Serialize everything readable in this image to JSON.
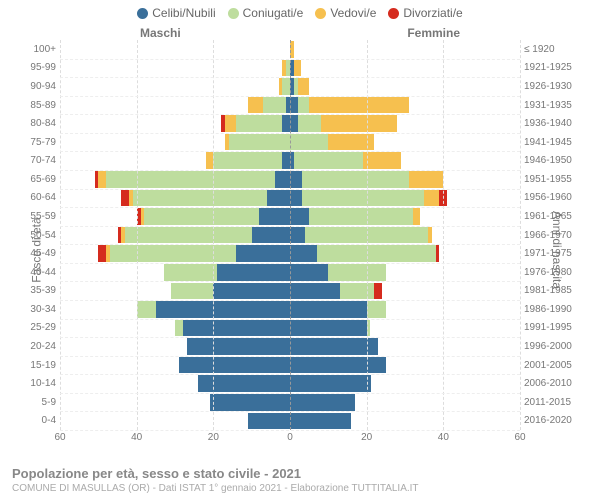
{
  "type": "population-pyramid",
  "legend": [
    {
      "label": "Celibi/Nubili",
      "color": "#3a6f9a"
    },
    {
      "label": "Coniugati/e",
      "color": "#bedd9e"
    },
    {
      "label": "Vedovi/e",
      "color": "#f6c04f"
    },
    {
      "label": "Divorziati/e",
      "color": "#d52b1e"
    }
  ],
  "side_titles": {
    "male": "Maschi",
    "female": "Femmine"
  },
  "y_axis_left_title": "Fasce di età",
  "y_axis_right_title": "Anni di nascita",
  "x_axis": {
    "min": 0,
    "max": 60,
    "ticks": [
      60,
      40,
      20,
      0,
      20,
      40,
      60
    ]
  },
  "age_labels": [
    "100+",
    "95-99",
    "90-94",
    "85-89",
    "80-84",
    "75-79",
    "70-74",
    "65-69",
    "60-64",
    "55-59",
    "50-54",
    "45-49",
    "40-44",
    "35-39",
    "30-34",
    "25-29",
    "20-24",
    "15-19",
    "10-14",
    "5-9",
    "0-4"
  ],
  "year_labels": [
    "≤ 1920",
    "1921-1925",
    "1926-1930",
    "1931-1935",
    "1936-1940",
    "1941-1945",
    "1946-1950",
    "1951-1955",
    "1956-1960",
    "1961-1965",
    "1966-1970",
    "1971-1975",
    "1976-1980",
    "1981-1985",
    "1986-1990",
    "1991-1995",
    "1996-2000",
    "2001-2005",
    "2006-2010",
    "2011-2015",
    "2016-2020"
  ],
  "data": {
    "male": [
      {
        "single": 0,
        "married": 0,
        "widowed": 0,
        "divorced": 0
      },
      {
        "single": 0,
        "married": 1,
        "widowed": 1,
        "divorced": 0
      },
      {
        "single": 0,
        "married": 2,
        "widowed": 1,
        "divorced": 0
      },
      {
        "single": 1,
        "married": 6,
        "widowed": 4,
        "divorced": 0
      },
      {
        "single": 2,
        "married": 12,
        "widowed": 3,
        "divorced": 1
      },
      {
        "single": 0,
        "married": 16,
        "widowed": 1,
        "divorced": 0
      },
      {
        "single": 2,
        "married": 18,
        "widowed": 2,
        "divorced": 0
      },
      {
        "single": 4,
        "married": 44,
        "widowed": 2,
        "divorced": 1
      },
      {
        "single": 6,
        "married": 35,
        "widowed": 1,
        "divorced": 2
      },
      {
        "single": 8,
        "married": 30,
        "widowed": 1,
        "divorced": 1
      },
      {
        "single": 10,
        "married": 33,
        "widowed": 1,
        "divorced": 1
      },
      {
        "single": 14,
        "married": 33,
        "widowed": 1,
        "divorced": 2
      },
      {
        "single": 19,
        "married": 14,
        "widowed": 0,
        "divorced": 0
      },
      {
        "single": 20,
        "married": 11,
        "widowed": 0,
        "divorced": 0
      },
      {
        "single": 35,
        "married": 5,
        "widowed": 0,
        "divorced": 0
      },
      {
        "single": 28,
        "married": 2,
        "widowed": 0,
        "divorced": 0
      },
      {
        "single": 27,
        "married": 0,
        "widowed": 0,
        "divorced": 0
      },
      {
        "single": 29,
        "married": 0,
        "widowed": 0,
        "divorced": 0
      },
      {
        "single": 24,
        "married": 0,
        "widowed": 0,
        "divorced": 0
      },
      {
        "single": 21,
        "married": 0,
        "widowed": 0,
        "divorced": 0
      },
      {
        "single": 11,
        "married": 0,
        "widowed": 0,
        "divorced": 0
      }
    ],
    "female": [
      {
        "single": 0,
        "married": 0,
        "widowed": 1,
        "divorced": 0
      },
      {
        "single": 1,
        "married": 0,
        "widowed": 2,
        "divorced": 0
      },
      {
        "single": 1,
        "married": 1,
        "widowed": 3,
        "divorced": 0
      },
      {
        "single": 2,
        "married": 3,
        "widowed": 26,
        "divorced": 0
      },
      {
        "single": 2,
        "married": 6,
        "widowed": 20,
        "divorced": 0
      },
      {
        "single": 0,
        "married": 10,
        "widowed": 12,
        "divorced": 0
      },
      {
        "single": 1,
        "married": 18,
        "widowed": 10,
        "divorced": 0
      },
      {
        "single": 3,
        "married": 28,
        "widowed": 9,
        "divorced": 0
      },
      {
        "single": 3,
        "married": 32,
        "widowed": 4,
        "divorced": 2
      },
      {
        "single": 5,
        "married": 27,
        "widowed": 2,
        "divorced": 0
      },
      {
        "single": 4,
        "married": 32,
        "widowed": 1,
        "divorced": 0
      },
      {
        "single": 7,
        "married": 31,
        "widowed": 0,
        "divorced": 1
      },
      {
        "single": 10,
        "married": 15,
        "widowed": 0,
        "divorced": 0
      },
      {
        "single": 13,
        "married": 9,
        "widowed": 0,
        "divorced": 2
      },
      {
        "single": 20,
        "married": 5,
        "widowed": 0,
        "divorced": 0
      },
      {
        "single": 20,
        "married": 1,
        "widowed": 0,
        "divorced": 0
      },
      {
        "single": 23,
        "married": 0,
        "widowed": 0,
        "divorced": 0
      },
      {
        "single": 25,
        "married": 0,
        "widowed": 0,
        "divorced": 0
      },
      {
        "single": 21,
        "married": 0,
        "widowed": 0,
        "divorced": 0
      },
      {
        "single": 17,
        "married": 0,
        "widowed": 0,
        "divorced": 0
      },
      {
        "single": 16,
        "married": 0,
        "widowed": 0,
        "divorced": 0
      }
    ]
  },
  "footer": {
    "title": "Popolazione per età, sesso e stato civile - 2021",
    "subtitle": "COMUNE DI MASULLAS (OR) - Dati ISTAT 1° gennaio 2021 - Elaborazione TUTTITALIA.IT"
  },
  "style": {
    "background": "#ffffff",
    "grid_color": "#dddddd",
    "center_line_color": "#999999",
    "text_color": "#777777",
    "label_fontsize": 10,
    "title_fontsize": 13
  }
}
